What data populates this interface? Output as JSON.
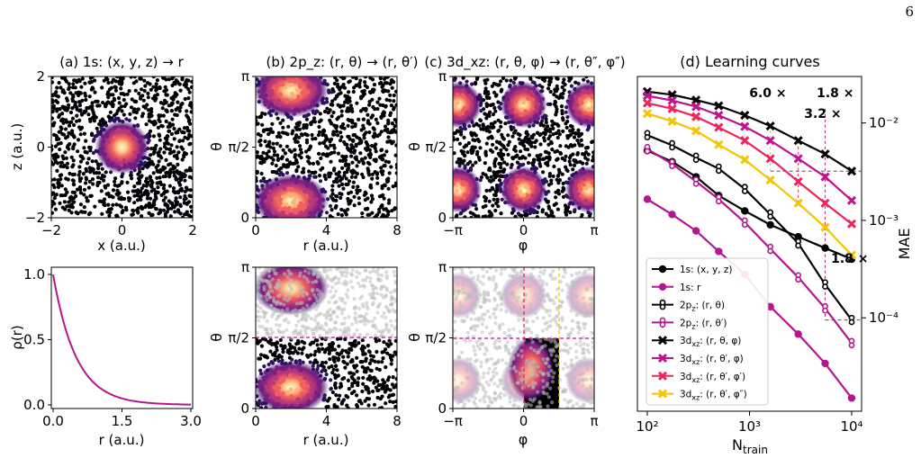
{
  "page_number": "6",
  "panel_a": {
    "title": "(a) 1s: (x, y, z) → r",
    "xlabel": "x (a.u.)",
    "ylabel": "z (a.u.)",
    "xticks": [
      "−2",
      "0",
      "2"
    ],
    "yticks": [
      "−2",
      "0",
      "2"
    ]
  },
  "panel_b": {
    "title": "(b) 2p_z: (r, θ) → (r, θ′)",
    "xlabel": "r (a.u.)",
    "ylabel": "θ",
    "xticks": [
      "0",
      "4",
      "8"
    ],
    "yticks": [
      "0",
      "π/2",
      "π"
    ]
  },
  "panel_c": {
    "title": "(c) 3d_xz: (r, θ, φ) → (r, θ″, φ″)",
    "xlabel": "φ",
    "ylabel": "θ",
    "xticks": [
      "−π",
      "0",
      "π"
    ],
    "yticks": [
      "0",
      "π/2",
      "π"
    ]
  },
  "panel_density": {
    "xlabel": "r (a.u.)",
    "ylabel": "ρ(r)",
    "xticks": [
      "0.0",
      "1.5",
      "3.0"
    ],
    "yticks": [
      "0.0",
      "0.5",
      "1.0"
    ]
  },
  "panel_d": {
    "title": "(d) Learning curves",
    "xlabel": "N_train",
    "ylabel": "MAE",
    "xticks": [
      "10²",
      "10³",
      "10⁴"
    ],
    "yticks": [
      "10⁻⁴",
      "10⁻³",
      "10⁻²"
    ],
    "annotations": [
      {
        "text": "6.0 ×",
        "color": "#f5c400"
      },
      {
        "text": "1.8 ×",
        "color": "#c2118f"
      },
      {
        "text": "3.2 ×",
        "color": "#f0245a"
      },
      {
        "text": "1.8 ×",
        "color": "#c2118f"
      }
    ]
  },
  "chart_data": [
    {
      "type": "scatter",
      "title": "(a) 1s: (x, y, z) → r",
      "xlabel": "x (a.u.)",
      "ylabel": "z (a.u.)",
      "xlim": [
        -2,
        2
      ],
      "ylim": [
        -2,
        2
      ],
      "colormap": "magma",
      "bright_center": [
        0,
        0
      ]
    },
    {
      "type": "scatter",
      "title": "(b) 2p_z: (r, θ) → (r, θ′)",
      "xlabel": "r (a.u.)",
      "ylabel": "θ",
      "xlim": [
        0,
        8
      ],
      "ylim": [
        0,
        3.14159
      ],
      "colormap": "magma",
      "bright_centers": [
        [
          2,
          0.5
        ],
        [
          2,
          2.6
        ]
      ]
    },
    {
      "type": "scatter",
      "title": "(c) 3d_xz: (r, θ, φ) → (r, θ″, φ″)",
      "xlabel": "φ",
      "ylabel": "θ",
      "xlim": [
        -3.14159,
        3.14159
      ],
      "ylim": [
        0,
        3.14159
      ],
      "colormap": "magma",
      "bright_centers": [
        [
          0,
          0.6
        ],
        [
          0,
          2.5
        ],
        [
          -2.8,
          0.6
        ],
        [
          2.8,
          0.6
        ],
        [
          -2.8,
          2.5
        ],
        [
          2.8,
          2.5
        ]
      ]
    },
    {
      "type": "line",
      "xlabel": "r (a.u.)",
      "ylabel": "ρ(r)",
      "xlim": [
        0,
        3
      ],
      "ylim": [
        0,
        1
      ],
      "x": [
        0,
        0.25,
        0.5,
        0.75,
        1.0,
        1.25,
        1.5,
        1.75,
        2.0,
        2.25,
        2.5,
        2.75,
        3.0
      ],
      "series": [
        {
          "values": [
            1.0,
            0.61,
            0.37,
            0.22,
            0.14,
            0.08,
            0.05,
            0.03,
            0.02,
            0.01,
            0.007,
            0.004,
            0.002
          ],
          "color": "#b5168f"
        }
      ]
    },
    {
      "type": "scatter",
      "xlabel": "r (a.u.)",
      "ylabel": "θ",
      "xlim": [
        0,
        8
      ],
      "ylim": [
        0,
        3.14159
      ],
      "note_line_y": 1.5708,
      "highlight_region": {
        "x": [
          0,
          8
        ],
        "y": [
          0,
          1.5708
        ]
      }
    },
    {
      "type": "scatter",
      "xlabel": "φ",
      "ylabel": "θ",
      "xlim": [
        -3.14159,
        3.14159
      ],
      "ylim": [
        0,
        3.14159
      ],
      "highlight_region": {
        "x": [
          0,
          1.57
        ],
        "y": [
          0,
          1.5708
        ]
      }
    },
    {
      "type": "line",
      "title": "(d) Learning curves",
      "xlabel": "N_train",
      "ylabel": "MAE",
      "xscale": "log",
      "yscale": "log",
      "xlim": [
        80,
        12500
      ],
      "ylim": [
        1.1e-05,
        0.03
      ],
      "x": [
        100,
        175,
        300,
        500,
        900,
        1600,
        3000,
        5500,
        10000
      ],
      "legend_position": "lower-left",
      "series": [
        {
          "name": "1s: (x, y, z)",
          "color": "#000000",
          "marker": "circle",
          "values": [
            0.0052,
            0.004,
            0.0028,
            0.0018,
            0.00125,
            0.0009,
            0.00068,
            0.00052,
            0.0004
          ]
        },
        {
          "name": "1s: r",
          "color": "#b5168f",
          "marker": "circle",
          "values": [
            0.00165,
            0.00115,
            0.00078,
            0.00048,
            0.00028,
            0.00013,
            6.8e-05,
            3.4e-05,
            1.5e-05
          ]
        },
        {
          "name": "2p_z: (r, θ)",
          "color": "#000000",
          "marker": "open-8",
          "values": [
            0.0075,
            0.0059,
            0.0044,
            0.0034,
            0.0021,
            0.00115,
            0.00058,
            0.00022,
            9.5e-05
          ]
        },
        {
          "name": "2p_z: (r, θ′)",
          "color": "#b5168f",
          "marker": "open-8",
          "values": [
            0.0054,
            0.0038,
            0.0025,
            0.00165,
            0.00095,
            0.00051,
            0.00026,
            0.000125,
            5.5e-05
          ]
        },
        {
          "name": "3d_xz: (r, θ, φ)",
          "color": "#000000",
          "marker": "x",
          "values": [
            0.021,
            0.0195,
            0.0172,
            0.015,
            0.012,
            0.0093,
            0.0066,
            0.0048,
            0.0032
          ]
        },
        {
          "name": "3d_xz: (r, θ′, φ)",
          "color": "#c2118f",
          "marker": "x",
          "values": [
            0.019,
            0.017,
            0.0147,
            0.012,
            0.0092,
            0.0066,
            0.0043,
            0.0028,
            0.0016
          ]
        },
        {
          "name": "3d_xz: (r, θ′, φ′)",
          "color": "#f0245a",
          "marker": "x",
          "values": [
            0.016,
            0.014,
            0.0116,
            0.009,
            0.0066,
            0.0043,
            0.0025,
            0.0015,
            0.00092
          ]
        },
        {
          "name": "3d_xz: (r, θ′, φ″)",
          "color": "#f5c400",
          "marker": "x",
          "values": [
            0.0125,
            0.0104,
            0.0083,
            0.006,
            0.0042,
            0.0026,
            0.0015,
            0.00085,
            0.00044
          ]
        }
      ]
    }
  ]
}
